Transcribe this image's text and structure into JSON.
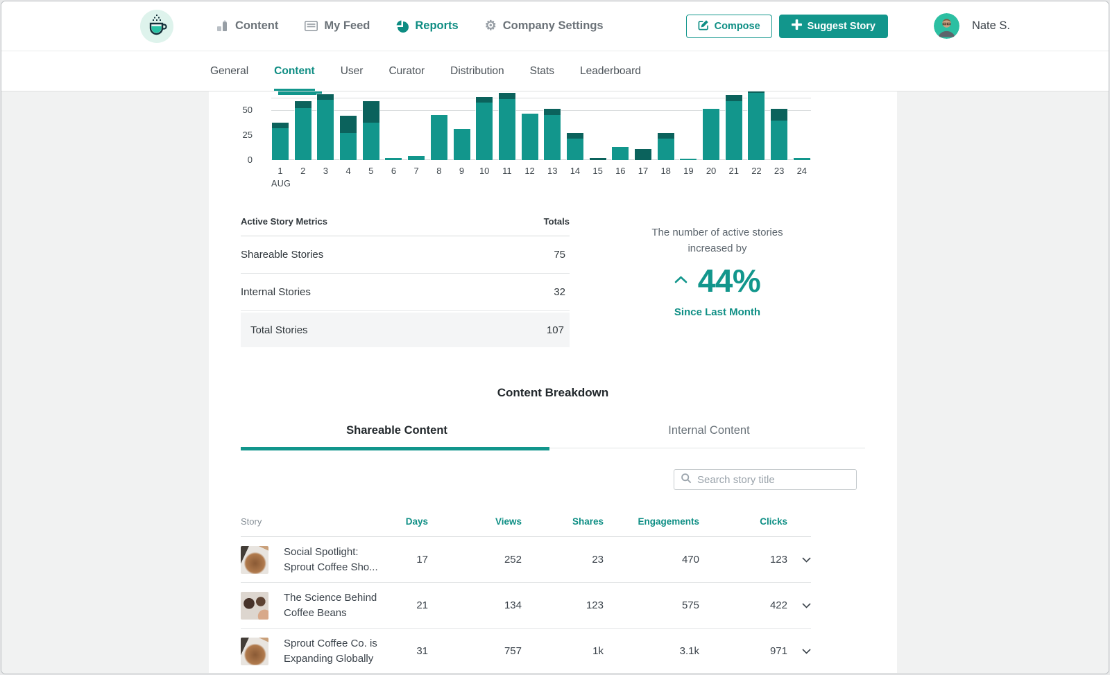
{
  "header": {
    "nav": [
      {
        "label": "Content",
        "icon": "bar-chart-icon"
      },
      {
        "label": "My Feed",
        "icon": "feed-icon"
      },
      {
        "label": "Reports",
        "icon": "pie-chart-icon",
        "active": true
      },
      {
        "label": "Company Settings",
        "icon": "gear-icon"
      }
    ],
    "compose_label": "Compose",
    "suggest_story_label": "Suggest Story",
    "user_name": "Nate S."
  },
  "subnav": {
    "items": [
      "General",
      "Content",
      "User",
      "Curator",
      "Distribution",
      "Stats",
      "Leaderboard"
    ],
    "active": "Content"
  },
  "chart_data": {
    "type": "bar",
    "stacked": true,
    "month_label": "AUG",
    "categories": [
      "1",
      "2",
      "3",
      "4",
      "5",
      "6",
      "7",
      "8",
      "9",
      "10",
      "11",
      "12",
      "13",
      "14",
      "15",
      "16",
      "17",
      "18",
      "19",
      "20",
      "21",
      "22",
      "23",
      "24"
    ],
    "series": [
      {
        "name": "shareable",
        "color": "#12968c",
        "values": [
          33,
          53,
          61,
          28,
          38,
          3,
          5,
          46,
          32,
          58,
          62,
          47,
          46,
          22,
          0,
          14,
          0,
          22,
          2,
          52,
          60,
          68,
          40,
          3
        ]
      },
      {
        "name": "internal",
        "color": "#0b625c",
        "values": [
          5,
          7,
          6,
          17,
          22,
          0,
          0,
          0,
          0,
          6,
          6,
          0,
          6,
          6,
          2,
          0,
          11,
          6,
          0,
          0,
          6,
          2,
          12,
          0
        ]
      }
    ],
    "yticks": [
      0,
      25,
      50
    ],
    "ylim": [
      0,
      69
    ],
    "grid": true,
    "legend_position": "none",
    "title": "",
    "xlabel": "",
    "ylabel": ""
  },
  "metrics": {
    "title": "Active Story Metrics",
    "totals_label": "Totals",
    "rows": [
      {
        "label": "Shareable Stories",
        "value": "75"
      },
      {
        "label": "Internal Stories",
        "value": "32"
      }
    ],
    "total_row": {
      "label": "Total Stories",
      "value": "107"
    }
  },
  "increase": {
    "line1": "The number of active stories",
    "line2": "increased by",
    "value": "44%",
    "caption": "Since Last Month"
  },
  "breakdown": {
    "title": "Content Breakdown",
    "tabs": [
      {
        "label": "Shareable Content",
        "active": true
      },
      {
        "label": "Internal Content",
        "active": false
      }
    ],
    "search_placeholder": "Search story title"
  },
  "story_table": {
    "columns": [
      "Story",
      "Days",
      "Views",
      "Shares",
      "Engagements",
      "Clicks"
    ],
    "rows": [
      {
        "title_line1": "Social Spotlight:",
        "title_line2": "Sprout Coffee Sho...",
        "days": "17",
        "views": "252",
        "shares": "23",
        "engagements": "470",
        "clicks": "123",
        "thumb": "a"
      },
      {
        "title_line1": "The Science Behind",
        "title_line2": "Coffee Beans",
        "days": "21",
        "views": "134",
        "shares": "123",
        "engagements": "575",
        "clicks": "422",
        "thumb": "b"
      },
      {
        "title_line1": "Sprout Coffee Co. is",
        "title_line2": "Expanding Globally",
        "days": "31",
        "views": "757",
        "shares": "1k",
        "engagements": "3.1k",
        "clicks": "971",
        "thumb": "a"
      }
    ]
  },
  "colors": {
    "accent": "#12968c",
    "accent_dark": "#0b625c",
    "accent_text": "#0d8c82",
    "text_dark": "#30373c",
    "text_gray": "#6a737a",
    "background": "#f1f2f2"
  }
}
